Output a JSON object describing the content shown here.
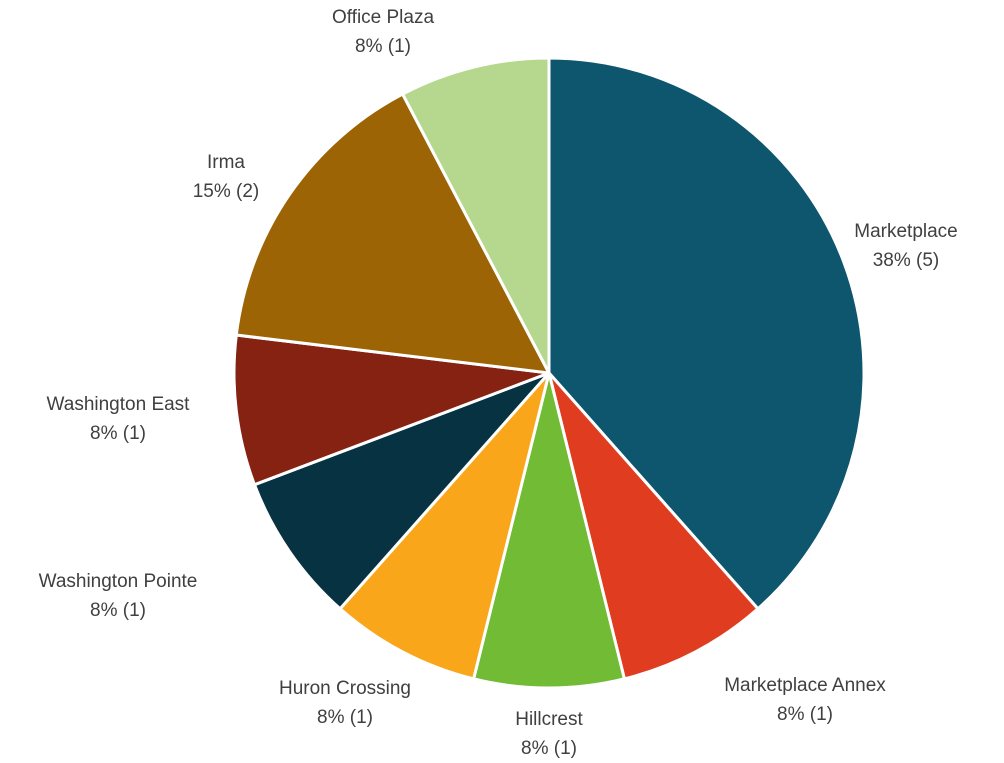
{
  "chart_data": {
    "type": "pie",
    "categories": [
      "Marketplace",
      "Marketplace Annex",
      "Hillcrest",
      "Huron Crossing",
      "Washington Pointe",
      "Washington East",
      "Irma",
      "Office Plaza"
    ],
    "values": [
      5,
      1,
      1,
      1,
      1,
      1,
      2,
      1
    ],
    "value_labels": [
      "38% (5)",
      "8% (1)",
      "8% (1)",
      "8% (1)",
      "8% (1)",
      "8% (1)",
      "15% (2)",
      "8% (1)"
    ],
    "colors": [
      "#0d566e",
      "#e03c1f",
      "#72bb34",
      "#f9a61a",
      "#073241",
      "#862212",
      "#9c6404",
      "#b5d88e"
    ]
  }
}
